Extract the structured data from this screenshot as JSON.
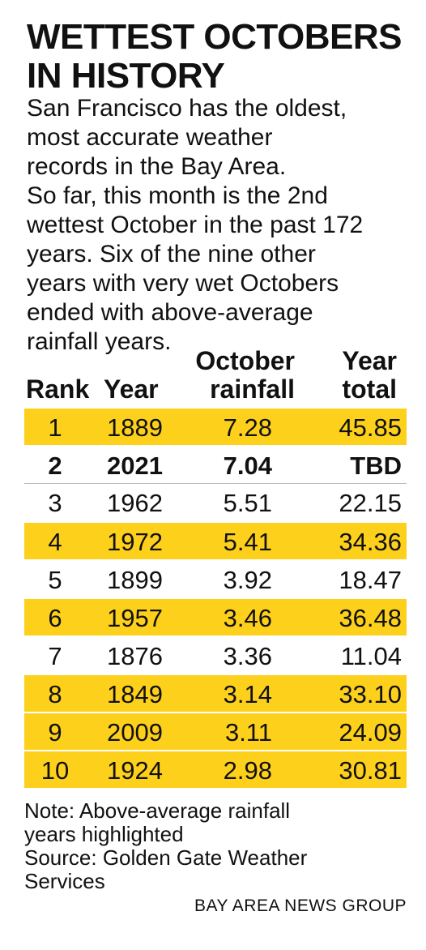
{
  "title_lines": [
    "WETTEST OCTOBERS",
    "IN HISTORY"
  ],
  "intro_lines": [
    "San Francisco has the oldest,",
    "most accurate weather",
    "records in the Bay Area.",
    "So far, this month is the 2nd",
    "wettest October in the past 172",
    "years. Six of the nine other",
    "years with very wet Octobers",
    "ended with above-average",
    "rainfall years."
  ],
  "colors": {
    "highlight": "#fdd01c",
    "text": "#111111"
  },
  "chart_data": {
    "type": "table",
    "columns": [
      {
        "lines": [
          "Rank"
        ]
      },
      {
        "lines": [
          "Year"
        ]
      },
      {
        "lines": [
          "October",
          "rainfall"
        ]
      },
      {
        "lines": [
          "Year",
          "total"
        ]
      }
    ],
    "rows": [
      {
        "rank": "1",
        "year": "1889",
        "october_rainfall": "7.28",
        "year_total": "45.85",
        "highlighted": true,
        "bold": false
      },
      {
        "rank": "2",
        "year": "2021",
        "october_rainfall": "7.04",
        "year_total": "TBD",
        "highlighted": false,
        "bold": true
      },
      {
        "rank": "3",
        "year": "1962",
        "october_rainfall": "5.51",
        "year_total": "22.15",
        "highlighted": false,
        "bold": false
      },
      {
        "rank": "4",
        "year": "1972",
        "october_rainfall": "5.41",
        "year_total": "34.36",
        "highlighted": true,
        "bold": false
      },
      {
        "rank": "5",
        "year": "1899",
        "october_rainfall": "3.92",
        "year_total": "18.47",
        "highlighted": false,
        "bold": false
      },
      {
        "rank": "6",
        "year": "1957",
        "october_rainfall": "3.46",
        "year_total": "36.48",
        "highlighted": true,
        "bold": false
      },
      {
        "rank": "7",
        "year": "1876",
        "october_rainfall": "3.36",
        "year_total": "11.04",
        "highlighted": false,
        "bold": false
      },
      {
        "rank": "8",
        "year": "1849",
        "october_rainfall": "3.14",
        "year_total": "33.10",
        "highlighted": true,
        "bold": false
      },
      {
        "rank": "9",
        "year": "2009",
        "october_rainfall": "3.11",
        "year_total": "24.09",
        "highlighted": true,
        "bold": false
      },
      {
        "rank": "10",
        "year": "1924",
        "october_rainfall": "2.98",
        "year_total": "30.81",
        "highlighted": true,
        "bold": false
      }
    ]
  },
  "note_lines": [
    "Note: Above-average rainfall",
    "years highlighted"
  ],
  "source_lines": [
    "Source: Golden Gate Weather",
    "Services"
  ],
  "credit": "BAY AREA NEWS GROUP"
}
